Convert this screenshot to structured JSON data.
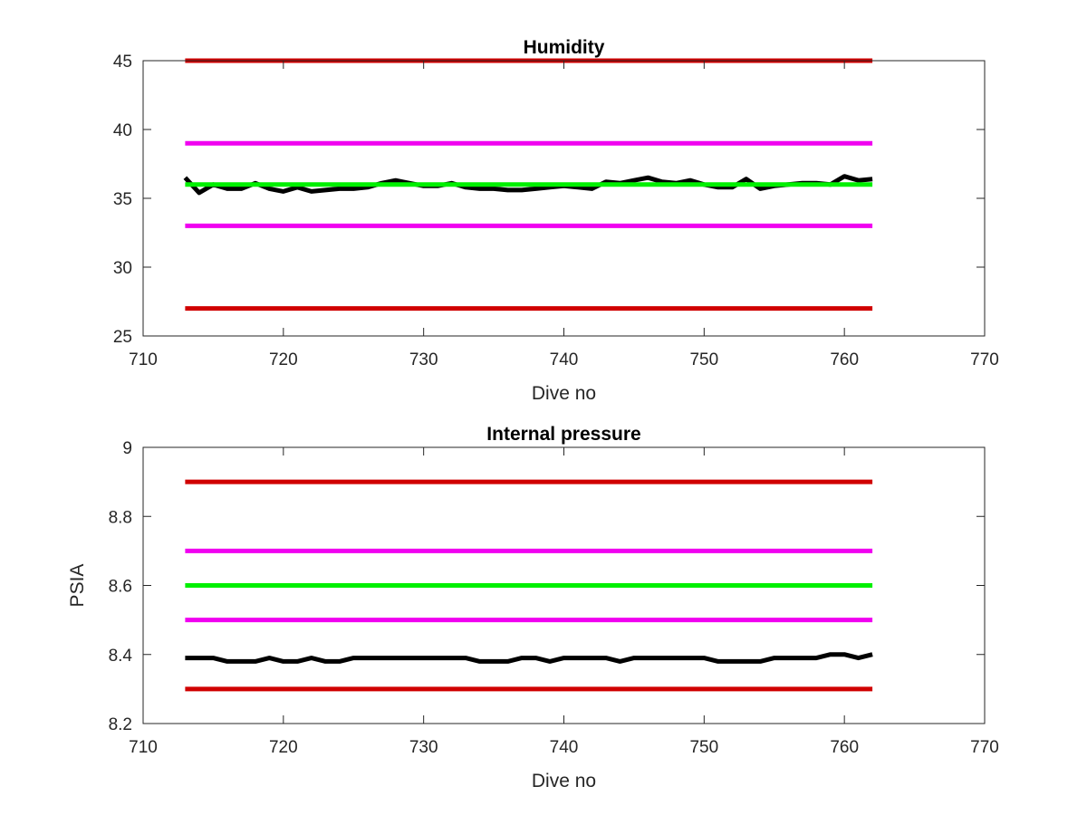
{
  "chart_data": [
    {
      "type": "line",
      "title": "Humidity",
      "xlabel": "Dive no",
      "ylabel": "",
      "xlim": [
        710,
        770
      ],
      "ylim": [
        25,
        45
      ],
      "xticks": [
        "710",
        "720",
        "730",
        "740",
        "750",
        "760",
        "770"
      ],
      "yticks": [
        "25",
        "30",
        "35",
        "40",
        "45"
      ],
      "grid": false,
      "series": [
        {
          "color": "#d00000",
          "x": [
            713,
            762
          ],
          "values": [
            45,
            45
          ]
        },
        {
          "color": "#f000f0",
          "x": [
            713,
            762
          ],
          "values": [
            39,
            39
          ]
        },
        {
          "color": "#000000",
          "x": [
            713,
            714,
            715,
            716,
            717,
            718,
            719,
            720,
            721,
            722,
            723,
            724,
            725,
            726,
            727,
            728,
            729,
            730,
            731,
            732,
            733,
            734,
            735,
            736,
            737,
            738,
            739,
            740,
            741,
            742,
            743,
            744,
            745,
            746,
            747,
            748,
            749,
            750,
            751,
            752,
            753,
            754,
            755,
            756,
            757,
            758,
            759,
            760,
            761,
            762
          ],
          "values": [
            36.5,
            35.4,
            36.0,
            35.7,
            35.7,
            36.1,
            35.7,
            35.5,
            35.8,
            35.5,
            35.6,
            35.7,
            35.7,
            35.8,
            36.1,
            36.3,
            36.1,
            35.9,
            35.9,
            36.1,
            35.8,
            35.7,
            35.7,
            35.6,
            35.6,
            35.7,
            35.8,
            35.9,
            35.8,
            35.7,
            36.2,
            36.1,
            36.3,
            36.5,
            36.2,
            36.1,
            36.3,
            36.0,
            35.8,
            35.8,
            36.4,
            35.7,
            35.9,
            36.0,
            36.1,
            36.1,
            36.0,
            36.6,
            36.3,
            36.4
          ]
        },
        {
          "color": "#00f000",
          "x": [
            713,
            762
          ],
          "values": [
            36,
            36
          ]
        },
        {
          "color": "#f000f0",
          "x": [
            713,
            762
          ],
          "values": [
            33,
            33
          ]
        },
        {
          "color": "#d00000",
          "x": [
            713,
            762
          ],
          "values": [
            27,
            27
          ]
        }
      ]
    },
    {
      "type": "line",
      "title": "Internal pressure",
      "xlabel": "Dive no",
      "ylabel": "PSIA",
      "xlim": [
        710,
        770
      ],
      "ylim": [
        8.2,
        9
      ],
      "xticks": [
        "710",
        "720",
        "730",
        "740",
        "750",
        "760",
        "770"
      ],
      "yticks": [
        "8.2",
        "8.4",
        "8.6",
        "8.8",
        "9"
      ],
      "grid": false,
      "series": [
        {
          "color": "#d00000",
          "x": [
            713,
            762
          ],
          "values": [
            8.9,
            8.9
          ]
        },
        {
          "color": "#f000f0",
          "x": [
            713,
            762
          ],
          "values": [
            8.7,
            8.7
          ]
        },
        {
          "color": "#00f000",
          "x": [
            713,
            762
          ],
          "values": [
            8.6,
            8.6
          ]
        },
        {
          "color": "#f000f0",
          "x": [
            713,
            762
          ],
          "values": [
            8.5,
            8.5
          ]
        },
        {
          "color": "#000000",
          "x": [
            713,
            714,
            715,
            716,
            717,
            718,
            719,
            720,
            721,
            722,
            723,
            724,
            725,
            726,
            727,
            728,
            729,
            730,
            731,
            732,
            733,
            734,
            735,
            736,
            737,
            738,
            739,
            740,
            741,
            742,
            743,
            744,
            745,
            746,
            747,
            748,
            749,
            750,
            751,
            752,
            753,
            754,
            755,
            756,
            757,
            758,
            759,
            760,
            761,
            762
          ],
          "values": [
            8.39,
            8.39,
            8.39,
            8.38,
            8.38,
            8.38,
            8.39,
            8.38,
            8.38,
            8.39,
            8.38,
            8.38,
            8.39,
            8.39,
            8.39,
            8.39,
            8.39,
            8.39,
            8.39,
            8.39,
            8.39,
            8.38,
            8.38,
            8.38,
            8.39,
            8.39,
            8.38,
            8.39,
            8.39,
            8.39,
            8.39,
            8.38,
            8.39,
            8.39,
            8.39,
            8.39,
            8.39,
            8.39,
            8.38,
            8.38,
            8.38,
            8.38,
            8.39,
            8.39,
            8.39,
            8.39,
            8.4,
            8.4,
            8.39,
            8.4
          ]
        },
        {
          "color": "#d00000",
          "x": [
            713,
            762
          ],
          "values": [
            8.3,
            8.3
          ]
        }
      ]
    }
  ]
}
